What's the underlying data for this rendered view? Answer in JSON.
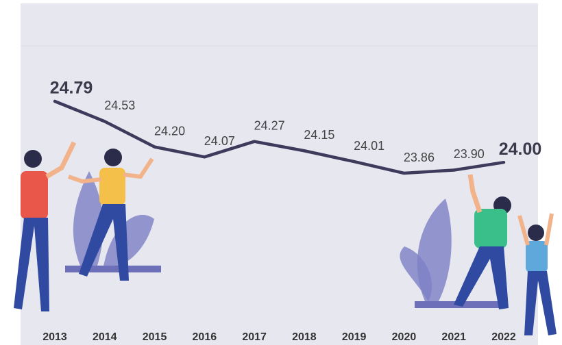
{
  "chart_data": {
    "type": "line",
    "categories": [
      "2013",
      "2014",
      "2015",
      "2016",
      "2017",
      "2018",
      "2019",
      "2020",
      "2021",
      "2022"
    ],
    "values": [
      24.79,
      24.53,
      24.2,
      24.07,
      24.27,
      24.15,
      24.01,
      23.86,
      23.9,
      24.0
    ],
    "value_labels": [
      "24.79",
      "24.53",
      "24.20",
      "24.07",
      "24.27",
      "24.15",
      "24.01",
      "23.86",
      "23.90",
      "24.00"
    ],
    "color": "#3d3a5c"
  }
}
